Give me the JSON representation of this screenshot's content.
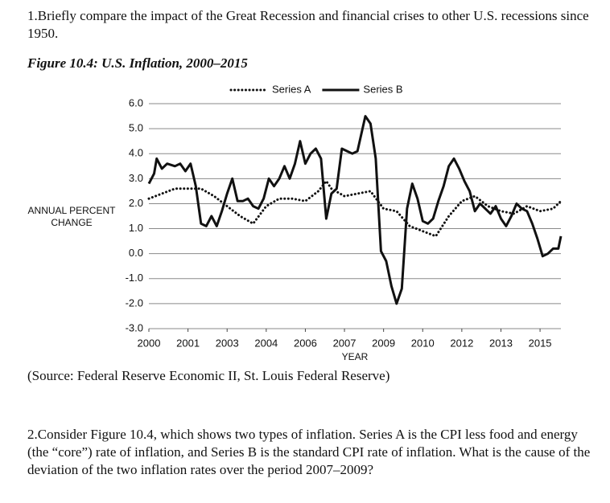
{
  "question_1": "1.Briefly compare the impact of the Great Recession and financial crises to other U.S. recessions since 1950.",
  "figure_title": "Figure 10.4: U.S. Inflation, 2000–2015",
  "chart_data": {
    "type": "line",
    "ylabel": "ANNUAL PERCENT CHANGE",
    "xlabel": "YEAR",
    "xlim": [
      2000,
      2015.8
    ],
    "ylim": [
      -3,
      6
    ],
    "xticks": [
      2000,
      {
        "value": 2001.5,
        "label": "2001"
      },
      2003,
      {
        "value": 2004.5,
        "label": "2004"
      },
      2006,
      {
        "value": 2007.5,
        "label": "2007"
      },
      2009,
      {
        "value": 2010.5,
        "label": "2010"
      },
      2012,
      {
        "value": 2013.5,
        "label": "2013"
      },
      2015
    ],
    "yticks": [
      {
        "value": 6,
        "label": "6.0"
      },
      {
        "value": 5,
        "label": "5.0"
      },
      {
        "value": 4,
        "label": "4.0"
      },
      {
        "value": 3,
        "label": "3.0"
      },
      {
        "value": 2,
        "label": "2.0"
      },
      {
        "value": 1,
        "label": "1.0"
      },
      {
        "value": 0,
        "label": "0.0"
      },
      {
        "value": -1,
        "label": "-1.0"
      },
      {
        "value": -2,
        "label": "-2.0"
      },
      {
        "value": -3,
        "label": "-3.0"
      }
    ],
    "grid": true,
    "legend": "top",
    "series": [
      {
        "name": "Series A",
        "color": "#111111",
        "line_style": "dotted",
        "x": [
          2000.0,
          2000.5,
          2001.0,
          2001.5,
          2002.0,
          2002.5,
          2003.0,
          2003.5,
          2004.0,
          2004.5,
          2005.0,
          2005.5,
          2006.0,
          2006.5,
          2006.8,
          2007.0,
          2007.5,
          2008.0,
          2008.5,
          2009.0,
          2009.5,
          2010.0,
          2010.5,
          2011.0,
          2011.5,
          2012.0,
          2012.5,
          2013.0,
          2013.5,
          2014.0,
          2014.5,
          2015.0,
          2015.5,
          2015.8
        ],
        "values": [
          2.2,
          2.4,
          2.6,
          2.6,
          2.6,
          2.3,
          1.9,
          1.5,
          1.2,
          1.9,
          2.2,
          2.2,
          2.1,
          2.5,
          2.9,
          2.6,
          2.3,
          2.4,
          2.5,
          1.8,
          1.7,
          1.1,
          0.9,
          0.7,
          1.5,
          2.1,
          2.3,
          1.9,
          1.7,
          1.6,
          1.9,
          1.7,
          1.8,
          2.1
        ]
      },
      {
        "name": "Series B",
        "color": "#111111",
        "line_style": "solid",
        "x": [
          2000.0,
          2000.2,
          2000.3,
          2000.5,
          2000.7,
          2001.0,
          2001.2,
          2001.4,
          2001.6,
          2001.8,
          2002.0,
          2002.2,
          2002.4,
          2002.6,
          2002.8,
          2003.0,
          2003.2,
          2003.4,
          2003.6,
          2003.8,
          2004.0,
          2004.2,
          2004.4,
          2004.6,
          2004.8,
          2005.0,
          2005.2,
          2005.4,
          2005.6,
          2005.8,
          2006.0,
          2006.2,
          2006.4,
          2006.6,
          2006.8,
          2007.0,
          2007.2,
          2007.4,
          2007.6,
          2007.8,
          2008.0,
          2008.3,
          2008.5,
          2008.7,
          2008.9,
          2009.1,
          2009.3,
          2009.5,
          2009.7,
          2009.9,
          2010.1,
          2010.3,
          2010.5,
          2010.7,
          2010.9,
          2011.1,
          2011.3,
          2011.5,
          2011.7,
          2011.9,
          2012.1,
          2012.3,
          2012.5,
          2012.7,
          2012.9,
          2013.1,
          2013.3,
          2013.5,
          2013.7,
          2013.9,
          2014.1,
          2014.3,
          2014.5,
          2014.7,
          2014.9,
          2015.1,
          2015.3,
          2015.5,
          2015.7,
          2015.8
        ],
        "values": [
          2.8,
          3.2,
          3.8,
          3.4,
          3.6,
          3.5,
          3.6,
          3.3,
          3.6,
          2.7,
          1.2,
          1.1,
          1.5,
          1.1,
          1.7,
          2.4,
          3.0,
          2.1,
          2.1,
          2.2,
          1.9,
          1.8,
          2.2,
          3.0,
          2.7,
          3.0,
          3.5,
          3.0,
          3.6,
          4.5,
          3.6,
          4.0,
          4.2,
          3.8,
          1.4,
          2.4,
          2.6,
          4.2,
          4.1,
          4.0,
          4.1,
          5.5,
          5.2,
          3.8,
          0.1,
          -0.3,
          -1.3,
          -2.0,
          -1.4,
          1.8,
          2.8,
          2.2,
          1.3,
          1.2,
          1.4,
          2.1,
          2.7,
          3.5,
          3.8,
          3.4,
          2.9,
          2.5,
          1.7,
          2.0,
          1.8,
          1.6,
          1.9,
          1.4,
          1.1,
          1.5,
          2.0,
          1.8,
          1.7,
          1.2,
          0.6,
          -0.1,
          0.0,
          0.2,
          0.2,
          0.7
        ]
      }
    ]
  },
  "source": "(Source: Federal Reserve Economic II, St. Louis Federal Reserve)",
  "question_2": "2.Consider Figure 10.4, which shows two types of inflation. Series A is the CPI less food and energy (the “core”) rate of inflation, and Series B is the standard CPI rate of inflation. What is the cause of the deviation of the two inflation rates over the period 2007–2009?"
}
